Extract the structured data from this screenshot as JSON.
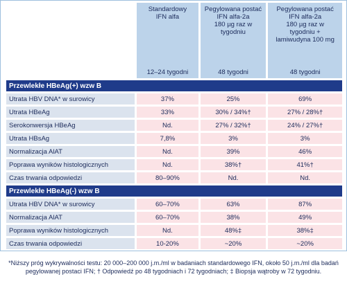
{
  "header": {
    "columns": [
      {
        "lines": [
          "Standardowy",
          "IFN alfa"
        ],
        "duration": "12–24 tygodni"
      },
      {
        "lines": [
          "Pegylowana postać",
          "IFN alfa-2a",
          "180 µg raz w tygodniu"
        ],
        "duration": "48 tygodni"
      },
      {
        "lines": [
          "Pegylowana postać",
          "IFN alfa-2a",
          "180 µg raz w",
          "tygodniu +",
          "lamiwudyna 100 mg"
        ],
        "duration": "48 tygodni"
      }
    ]
  },
  "sections": [
    {
      "title": "Przewlekłe HBeAg(+) wzw B",
      "rows": [
        [
          "Utrata HBV DNA* w surowicy",
          "37%",
          "25%",
          "69%"
        ],
        [
          "Utrata HBeAg",
          "33%",
          "30% / 34%†",
          "27% / 28%†"
        ],
        [
          "Serokonwersja HBeAg",
          "Nd.",
          "27% / 32%†",
          "24% / 27%†"
        ],
        [
          "Utrata HBsAg",
          "7,8%",
          "3%",
          "3%"
        ],
        [
          "Normalizacja AlAT",
          "Nd.",
          "39%",
          "46%"
        ],
        [
          "Poprawa wyników histologicznych",
          "Nd.",
          "38%†",
          "41%†"
        ],
        [
          "Czas trwania odpowiedzi",
          "80–90%",
          "Nd.",
          "Nd."
        ]
      ]
    },
    {
      "title": "Przewlekłe HBeAg(-) wzw B",
      "rows": [
        [
          "Utrata HBV DNA* w surowicy",
          "60–70%",
          "63%",
          "87%"
        ],
        [
          "Normalizacja AlAT",
          "60–70%",
          "38%",
          "49%"
        ],
        [
          "Poprawa wyników histologicznych",
          "Nd.",
          "48%‡",
          "38%‡"
        ],
        [
          "Czas trwania odpowiedzi",
          "10-20%",
          "~20%",
          "~20%"
        ]
      ]
    }
  ],
  "footnote": "*Niższy próg wykrywalności testu: 20 000–200 000 j.m./ml w badaniach standardowego IFN, około 50 j.m./ml dla badań pegylowanej postaci IFN; † Odpowiedź po 48 tygodniach i 72 tygodniach; ‡ Biopsja wątroby w 72 tygodniu."
}
